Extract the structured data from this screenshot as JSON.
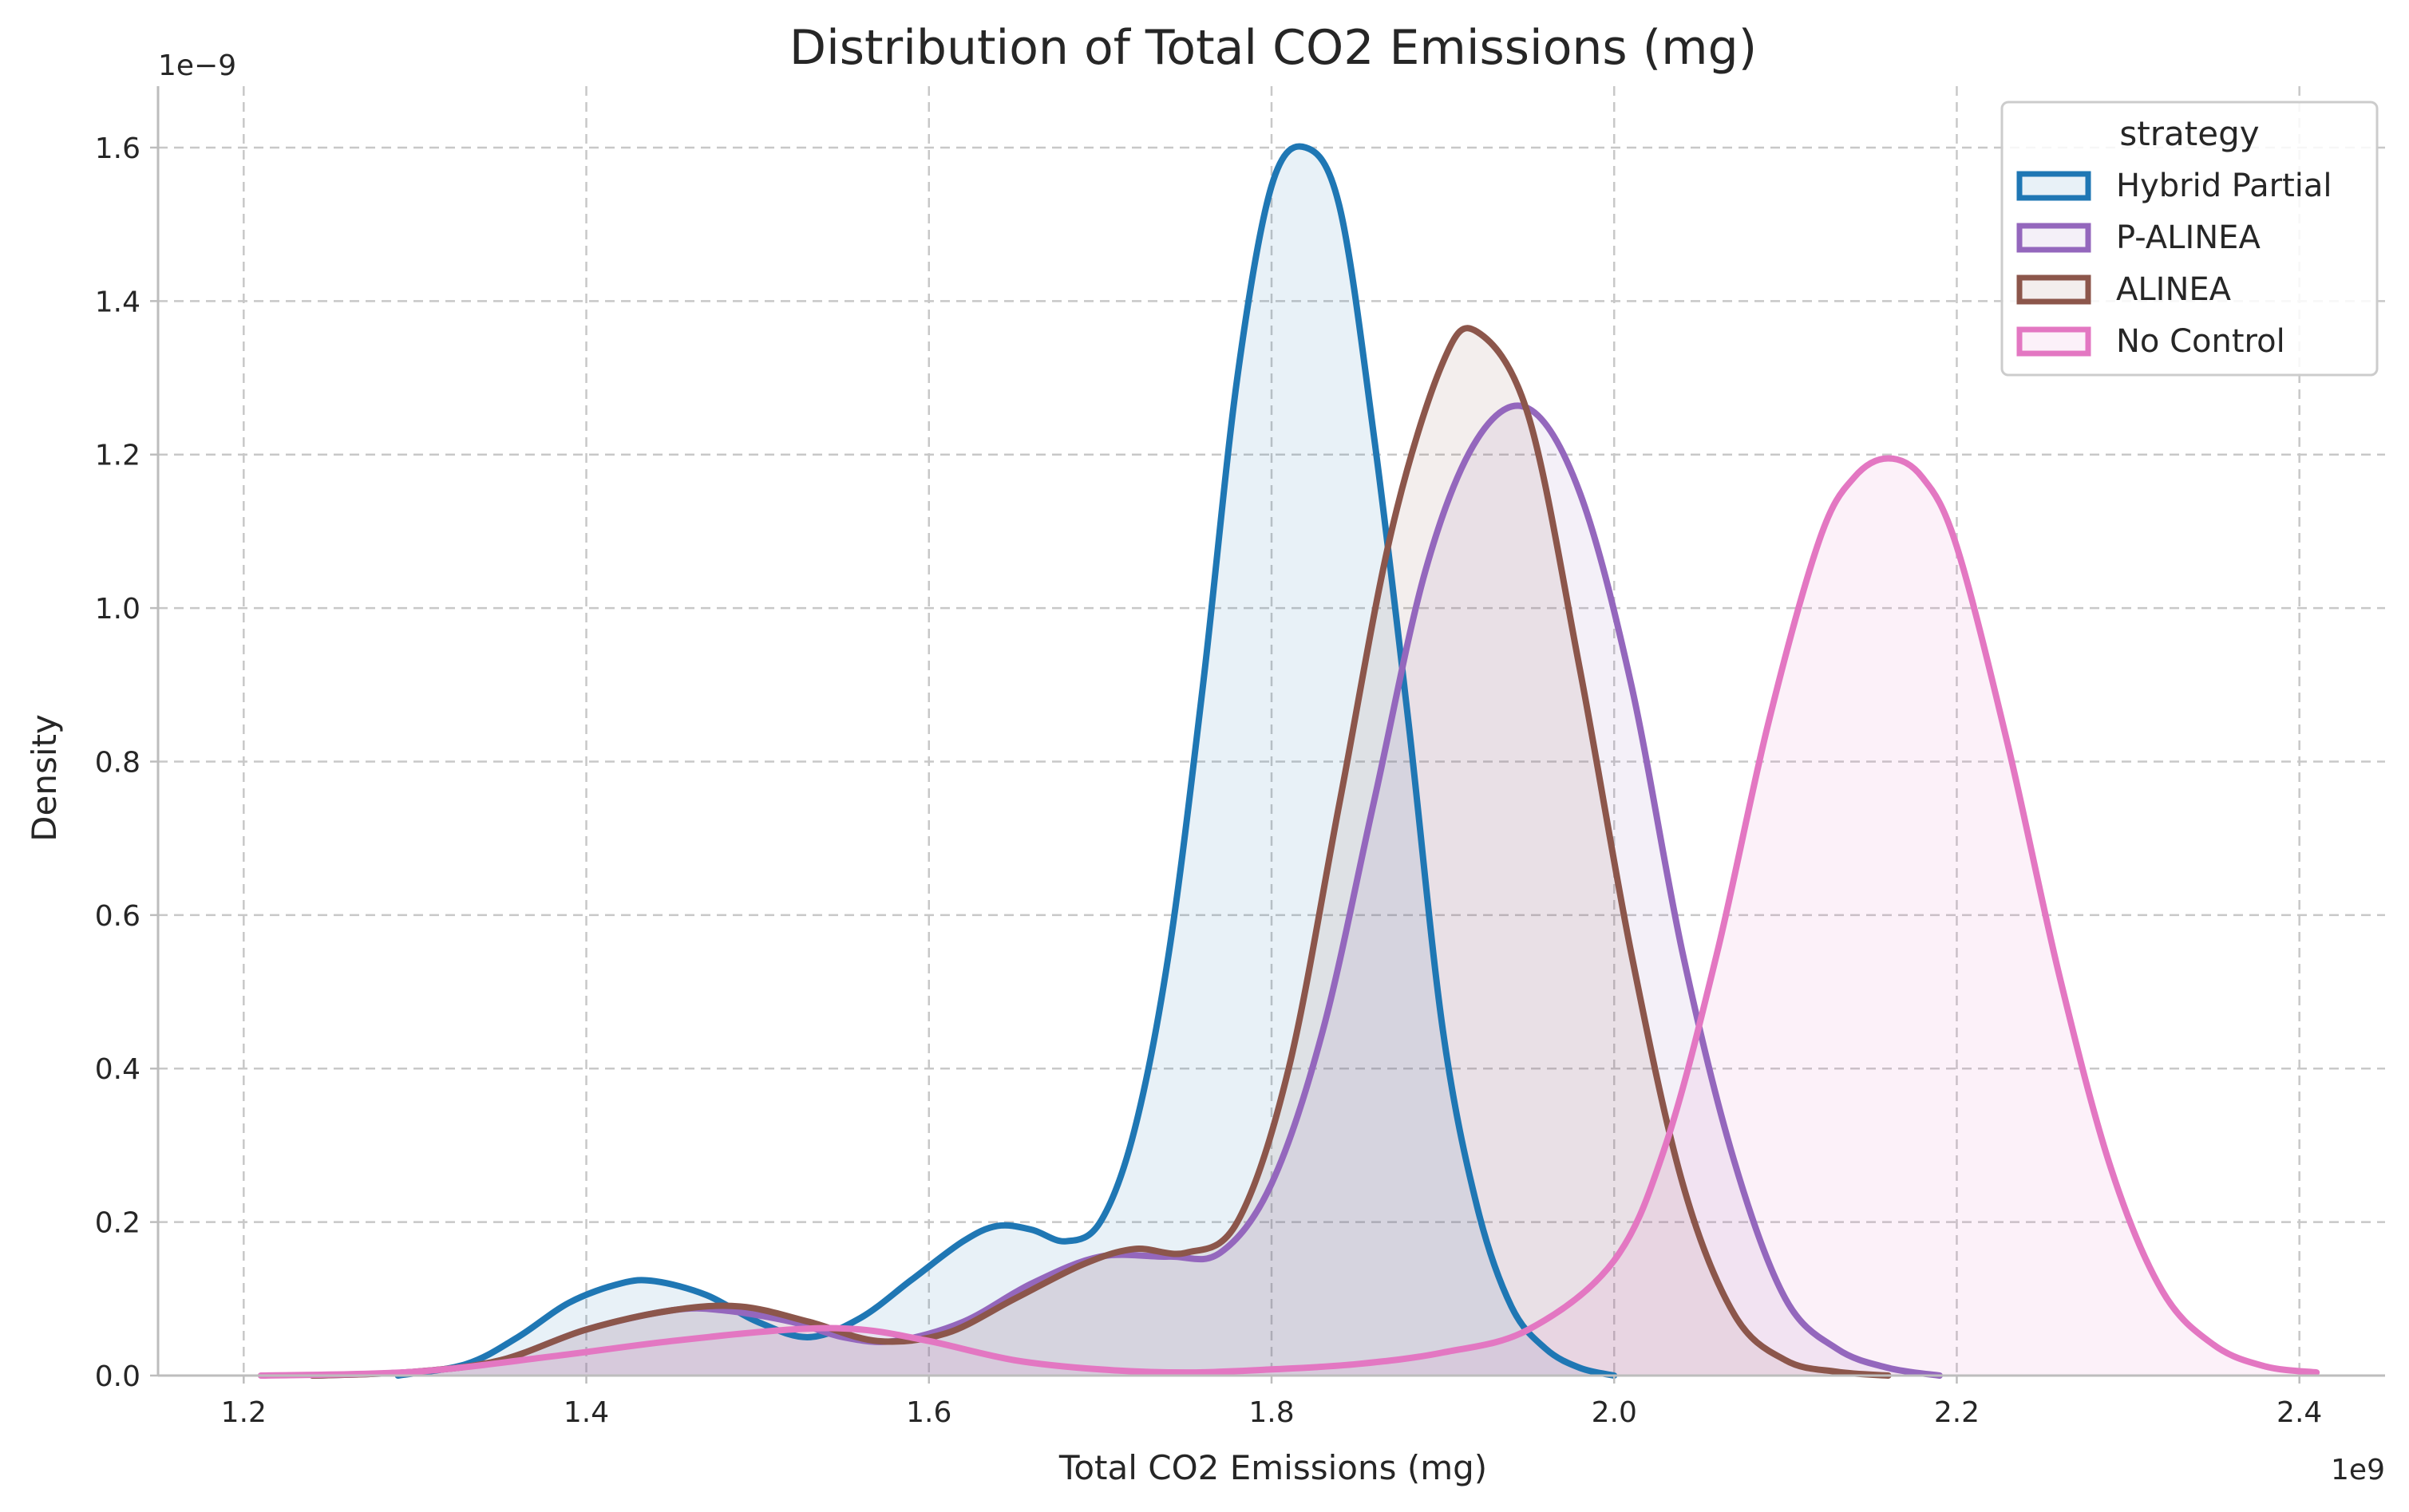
{
  "chart_data": {
    "type": "area",
    "title": "Distribution of Total CO2 Emissions (mg)",
    "xlabel": "Total CO2 Emissions (mg)",
    "ylabel": "Density",
    "x_multiplier_label": "1e9",
    "y_multiplier_label": "1e−9",
    "xlim": [
      1.15,
      2.45
    ],
    "ylim": [
      0,
      1.68
    ],
    "x_ticks": [
      1.2,
      1.4,
      1.6,
      1.8,
      2.0,
      2.2,
      2.4
    ],
    "x_tick_labels": [
      "1.2",
      "1.4",
      "1.6",
      "1.8",
      "2.0",
      "2.2",
      "2.4"
    ],
    "y_ticks": [
      0.0,
      0.2,
      0.4,
      0.6,
      0.8,
      1.0,
      1.2,
      1.4,
      1.6
    ],
    "y_tick_labels": [
      "0.0",
      "0.2",
      "0.4",
      "0.6",
      "0.8",
      "1.0",
      "1.2",
      "1.4",
      "1.6"
    ],
    "grid": true,
    "legend": {
      "title": "strategy",
      "placement": "top-right"
    },
    "series": [
      {
        "name": "Hybrid Partial",
        "color": "#1f77b4",
        "fill_opacity": 0.1,
        "x": [
          1.29,
          1.33,
          1.36,
          1.39,
          1.42,
          1.44,
          1.47,
          1.5,
          1.53,
          1.56,
          1.59,
          1.62,
          1.64,
          1.66,
          1.68,
          1.7,
          1.72,
          1.74,
          1.76,
          1.78,
          1.8,
          1.82,
          1.84,
          1.86,
          1.88,
          1.9,
          1.92,
          1.94,
          1.96,
          1.98,
          2.0
        ],
        "y": [
          0.0,
          0.015,
          0.05,
          0.095,
          0.12,
          0.123,
          0.105,
          0.07,
          0.05,
          0.075,
          0.125,
          0.175,
          0.195,
          0.19,
          0.175,
          0.2,
          0.32,
          0.55,
          0.9,
          1.3,
          1.55,
          1.6,
          1.52,
          1.22,
          0.85,
          0.45,
          0.22,
          0.09,
          0.035,
          0.01,
          0.0
        ]
      },
      {
        "name": "P-ALINEA",
        "color": "#9467bd",
        "fill_opacity": 0.1,
        "x": [
          1.24,
          1.3,
          1.35,
          1.4,
          1.45,
          1.48,
          1.52,
          1.55,
          1.58,
          1.62,
          1.66,
          1.7,
          1.74,
          1.77,
          1.8,
          1.83,
          1.86,
          1.89,
          1.92,
          1.95,
          1.98,
          2.01,
          2.04,
          2.07,
          2.1,
          2.13,
          2.16,
          2.19
        ],
        "y": [
          0.0,
          0.005,
          0.02,
          0.06,
          0.085,
          0.085,
          0.07,
          0.05,
          0.045,
          0.07,
          0.12,
          0.155,
          0.155,
          0.16,
          0.25,
          0.45,
          0.75,
          1.05,
          1.22,
          1.26,
          1.15,
          0.9,
          0.55,
          0.28,
          0.1,
          0.035,
          0.01,
          0.0
        ]
      },
      {
        "name": "ALINEA",
        "color": "#8c564b",
        "fill_opacity": 0.1,
        "x": [
          1.24,
          1.3,
          1.35,
          1.4,
          1.45,
          1.49,
          1.53,
          1.57,
          1.61,
          1.65,
          1.69,
          1.72,
          1.75,
          1.78,
          1.81,
          1.84,
          1.87,
          1.9,
          1.92,
          1.95,
          1.98,
          2.01,
          2.04,
          2.07,
          2.1,
          2.13,
          2.16
        ],
        "y": [
          0.0,
          0.005,
          0.02,
          0.06,
          0.085,
          0.09,
          0.07,
          0.045,
          0.055,
          0.1,
          0.145,
          0.165,
          0.16,
          0.2,
          0.4,
          0.75,
          1.1,
          1.32,
          1.36,
          1.25,
          0.92,
          0.55,
          0.25,
          0.08,
          0.02,
          0.005,
          0.0
        ]
      },
      {
        "name": "No Control",
        "color": "#e377c2",
        "fill_opacity": 0.1,
        "x": [
          1.21,
          1.3,
          1.38,
          1.45,
          1.52,
          1.56,
          1.6,
          1.65,
          1.7,
          1.75,
          1.8,
          1.85,
          1.9,
          1.95,
          2.0,
          2.03,
          2.06,
          2.09,
          2.12,
          2.14,
          2.16,
          2.18,
          2.2,
          2.23,
          2.26,
          2.29,
          2.32,
          2.35,
          2.38,
          2.41
        ],
        "y": [
          0.0,
          0.005,
          0.025,
          0.045,
          0.06,
          0.06,
          0.045,
          0.02,
          0.008,
          0.004,
          0.008,
          0.015,
          0.03,
          0.06,
          0.15,
          0.3,
          0.55,
          0.85,
          1.09,
          1.17,
          1.195,
          1.17,
          1.08,
          0.82,
          0.52,
          0.27,
          0.11,
          0.04,
          0.012,
          0.004
        ]
      }
    ]
  }
}
